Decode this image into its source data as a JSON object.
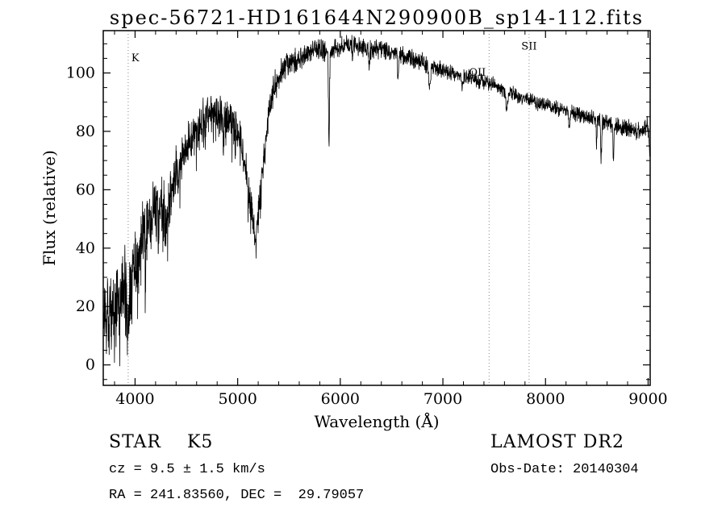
{
  "page": {
    "background": "#ffffff"
  },
  "title": "spec-56721-HD161644N290900B_sp14-112.fits",
  "footer": {
    "left": [
      "STAR    K5",
      "cz = 9.5 ± 1.5 km/s",
      "RA = 241.83560, DEC =  29.79057"
    ],
    "right": [
      "LAMOST DR2",
      "Obs-Date: 20140304"
    ]
  },
  "chart_data": {
    "type": "line",
    "title": "spec-56721-HD161644N290900B_sp14-112.fits",
    "xlabel": "Wavelength (Å)",
    "ylabel": "Flux (relative)",
    "xlim": [
      3690,
      9020
    ],
    "ylim": [
      -7,
      114.5
    ],
    "xticks": [
      4000,
      5000,
      6000,
      7000,
      8000,
      9000
    ],
    "yticks": [
      0,
      20,
      40,
      60,
      80,
      100
    ],
    "x_minor_step": 200,
    "y_minor_step": 5,
    "grid": false,
    "legend": false,
    "line_color": "#000000",
    "marker_color": "#888888",
    "spectral_lines": [
      {
        "label": "K",
        "wavelength": 3933,
        "label_flux": 104,
        "label_side": "right"
      },
      {
        "label": "OII",
        "wavelength": 7450,
        "label_flux": 99,
        "label_side": "left"
      },
      {
        "label": "SII",
        "wavelength": 7840,
        "label_flux": 108,
        "label_side": "center"
      }
    ],
    "continuum": [
      [
        3695,
        14
      ],
      [
        3720,
        16
      ],
      [
        3750,
        17
      ],
      [
        3800,
        20
      ],
      [
        3850,
        23
      ],
      [
        3900,
        26
      ],
      [
        3935,
        24
      ],
      [
        3970,
        30
      ],
      [
        4000,
        36
      ],
      [
        4050,
        42
      ],
      [
        4100,
        47
      ],
      [
        4150,
        50
      ],
      [
        4200,
        53
      ],
      [
        4250,
        55
      ],
      [
        4300,
        54
      ],
      [
        4350,
        60
      ],
      [
        4400,
        66
      ],
      [
        4450,
        70
      ],
      [
        4500,
        74
      ],
      [
        4550,
        78
      ],
      [
        4600,
        81
      ],
      [
        4650,
        83
      ],
      [
        4700,
        85
      ],
      [
        4750,
        86
      ],
      [
        4800,
        86
      ],
      [
        4850,
        85
      ],
      [
        4900,
        84
      ],
      [
        4950,
        82
      ],
      [
        5000,
        80
      ],
      [
        5050,
        74
      ],
      [
        5100,
        62
      ],
      [
        5150,
        50
      ],
      [
        5180,
        48
      ],
      [
        5220,
        58
      ],
      [
        5260,
        72
      ],
      [
        5300,
        85
      ],
      [
        5350,
        94
      ],
      [
        5400,
        99
      ],
      [
        5450,
        102
      ],
      [
        5500,
        103
      ],
      [
        5550,
        104
      ],
      [
        5600,
        105
      ],
      [
        5650,
        106
      ],
      [
        5700,
        107
      ],
      [
        5750,
        108
      ],
      [
        5800,
        108
      ],
      [
        5850,
        107
      ],
      [
        5900,
        107
      ],
      [
        5950,
        108
      ],
      [
        6000,
        109
      ],
      [
        6050,
        110
      ],
      [
        6100,
        110
      ],
      [
        6200,
        109
      ],
      [
        6300,
        108
      ],
      [
        6400,
        108
      ],
      [
        6500,
        107
      ],
      [
        6600,
        106
      ],
      [
        6700,
        105
      ],
      [
        6800,
        104
      ],
      [
        6900,
        102
      ],
      [
        7000,
        101
      ],
      [
        7100,
        100
      ],
      [
        7200,
        99
      ],
      [
        7300,
        98
      ],
      [
        7400,
        97
      ],
      [
        7500,
        96
      ],
      [
        7600,
        94
      ],
      [
        7700,
        93
      ],
      [
        7800,
        91
      ],
      [
        7900,
        90
      ],
      [
        8000,
        89
      ],
      [
        8100,
        88
      ],
      [
        8200,
        87
      ],
      [
        8300,
        86
      ],
      [
        8400,
        85
      ],
      [
        8500,
        84
      ],
      [
        8600,
        83
      ],
      [
        8700,
        82
      ],
      [
        8800,
        81
      ],
      [
        8900,
        80
      ],
      [
        8950,
        80
      ],
      [
        8990,
        82
      ],
      [
        9005,
        78
      ],
      [
        9015,
        72
      ]
    ],
    "absorption_features": [
      {
        "center": 3933,
        "depth": 10,
        "width": 8
      },
      {
        "center": 3968,
        "depth": 9,
        "width": 7
      },
      {
        "center": 4101,
        "depth": 8,
        "width": 6
      },
      {
        "center": 4226,
        "depth": 7,
        "width": 5
      },
      {
        "center": 4305,
        "depth": 9,
        "width": 10
      },
      {
        "center": 4340,
        "depth": 6,
        "width": 5
      },
      {
        "center": 4861,
        "depth": 8,
        "width": 5
      },
      {
        "center": 5170,
        "depth": 6,
        "width": 10
      },
      {
        "center": 5890,
        "depth": 33,
        "width": 5
      },
      {
        "center": 6122,
        "depth": 5,
        "width": 4
      },
      {
        "center": 6280,
        "depth": 6,
        "width": 5
      },
      {
        "center": 6563,
        "depth": 9,
        "width": 5
      },
      {
        "center": 6870,
        "depth": 7,
        "width": 8
      },
      {
        "center": 7190,
        "depth": 4,
        "width": 8
      },
      {
        "center": 7620,
        "depth": 6,
        "width": 10
      },
      {
        "center": 8230,
        "depth": 5,
        "width": 7
      },
      {
        "center": 8498,
        "depth": 8,
        "width": 4
      },
      {
        "center": 8542,
        "depth": 13,
        "width": 5
      },
      {
        "center": 8662,
        "depth": 12,
        "width": 5
      }
    ],
    "noise_amplitude": [
      [
        3695,
        11
      ],
      [
        3800,
        12
      ],
      [
        3900,
        12
      ],
      [
        3950,
        11
      ],
      [
        4000,
        10
      ],
      [
        4100,
        9
      ],
      [
        4200,
        8.5
      ],
      [
        4300,
        8
      ],
      [
        4400,
        7
      ],
      [
        4500,
        6.5
      ],
      [
        4600,
        6
      ],
      [
        4700,
        5.5
      ],
      [
        4800,
        5
      ],
      [
        4900,
        5
      ],
      [
        5000,
        5
      ],
      [
        5100,
        5.5
      ],
      [
        5200,
        5
      ],
      [
        5300,
        4.5
      ],
      [
        5400,
        4
      ],
      [
        5500,
        3.5
      ],
      [
        5600,
        3.2
      ],
      [
        5700,
        3
      ],
      [
        5900,
        3
      ],
      [
        6100,
        2.8
      ],
      [
        6300,
        2.6
      ],
      [
        6500,
        2.5
      ],
      [
        6700,
        2.4
      ],
      [
        6900,
        2.3
      ],
      [
        7100,
        2.2
      ],
      [
        7300,
        2.1
      ],
      [
        7500,
        2
      ],
      [
        7700,
        2
      ],
      [
        7900,
        2
      ],
      [
        8100,
        2.1
      ],
      [
        8300,
        2.2
      ],
      [
        8500,
        2.3
      ],
      [
        8700,
        2.4
      ],
      [
        8900,
        2.2
      ],
      [
        9015,
        2.5
      ]
    ],
    "sample_step": 2,
    "seed": 20140304
  }
}
